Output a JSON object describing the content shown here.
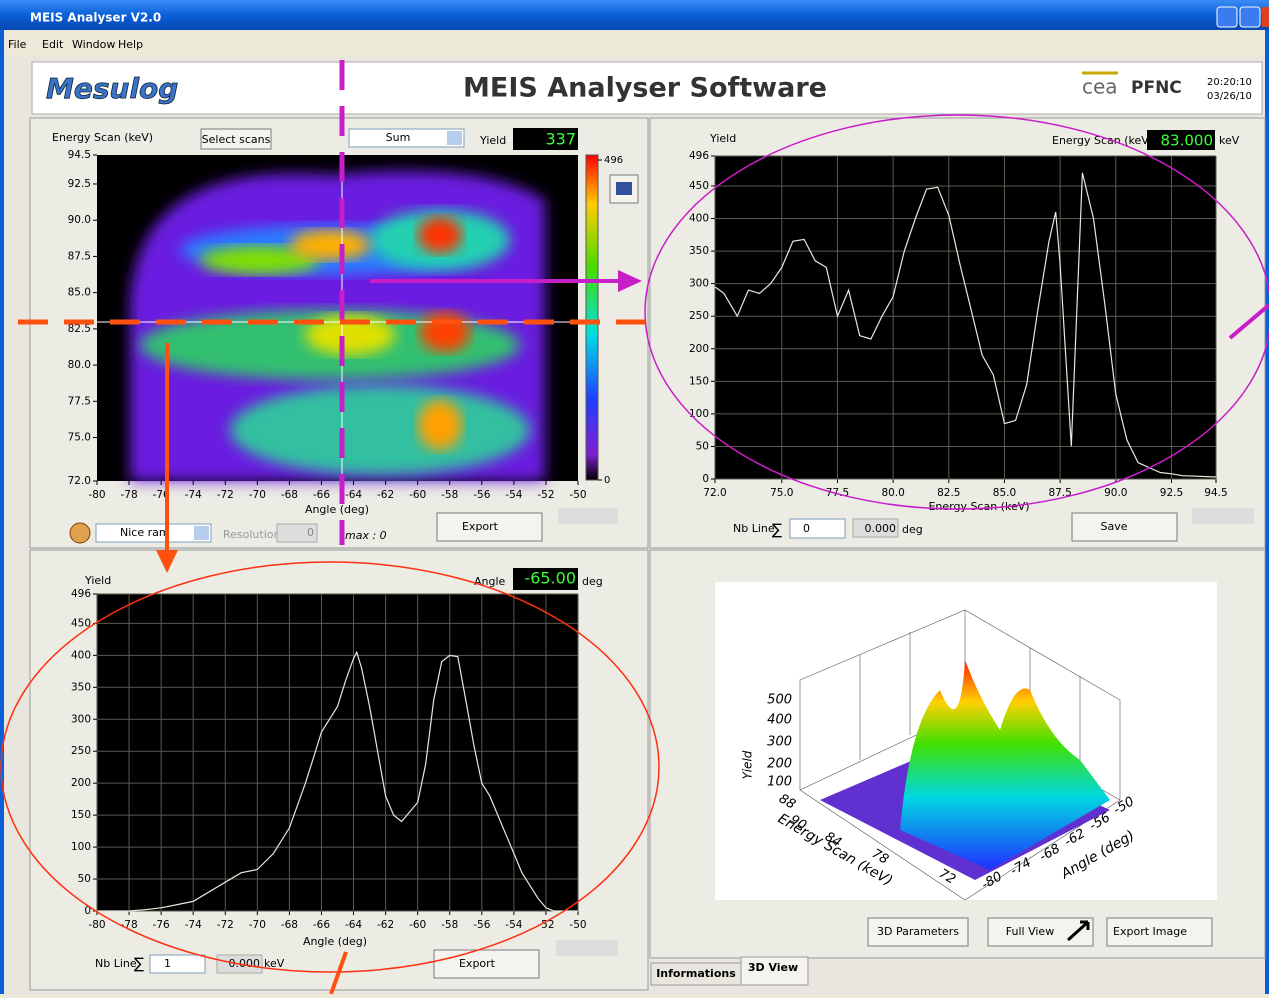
{
  "window": {
    "title": "MEIS Analyser V2.0",
    "menu": [
      "File",
      "Edit",
      "Window",
      "Help"
    ]
  },
  "header": {
    "logo": "Mesulog",
    "title": "MEIS Analyser Software",
    "org1": "cea",
    "org2": "PFNC",
    "time": "20:20:10",
    "date": "03/26/10"
  },
  "heatmap": {
    "y_label": "Energy Scan (keV)",
    "select_button": "Select scans",
    "mode": "Sum",
    "yield_label": "Yield",
    "yield_value": 337,
    "x_label": "Angle (deg)",
    "xlim": [
      -80,
      -50
    ],
    "ylim": [
      72,
      94.5
    ],
    "xticks": [
      -80,
      -78,
      -76,
      -74,
      -72,
      -70,
      -68,
      -66,
      -64,
      -62,
      -60,
      -58,
      -56,
      -54,
      -52,
      -50
    ],
    "yticks": [
      {
        "value": 72,
        "label": "72.0"
      },
      {
        "value": 75,
        "label": "75.0"
      },
      {
        "value": 77.5,
        "label": "77.5"
      },
      {
        "value": 80,
        "label": "80.0"
      },
      {
        "value": 82.5,
        "label": "82.5"
      },
      {
        "value": 85,
        "label": "85.0"
      },
      {
        "value": 87.5,
        "label": "87.5"
      },
      {
        "value": 90,
        "label": "90.0"
      },
      {
        "value": 92.5,
        "label": "92.5"
      },
      {
        "value": 94.5,
        "label": "94.5"
      }
    ],
    "colorbar": {
      "lim": [
        0,
        496
      ],
      "ticks": [
        0,
        496
      ]
    },
    "palette": "Nice ram",
    "resolution_label": "Resolution",
    "resolution": 0,
    "max_label": "max : 0",
    "export": "Export"
  },
  "energy_plot": {
    "y_label": "Yield",
    "cursor_label": "Energy Scan (keV)",
    "cursor_value": "83.000",
    "cursor_unit": "keV",
    "x_label": "Energy Scan (keV)",
    "xlim": [
      72,
      94.5
    ],
    "ylim": [
      0,
      496
    ],
    "xticks": [
      {
        "value": 72,
        "label": "72.0"
      },
      {
        "value": 75,
        "label": "75.0"
      },
      77.5,
      {
        "value": 80,
        "label": "80.0"
      },
      82.5,
      {
        "value": 85,
        "label": "85.0"
      },
      87.5,
      {
        "value": 90,
        "label": "90.0"
      },
      92.5,
      94.5
    ],
    "yticks": [
      0,
      50,
      100,
      150,
      200,
      250,
      300,
      350,
      400,
      450,
      496
    ],
    "x": [
      72,
      72.4,
      73,
      73.5,
      74,
      74.5,
      75,
      75.5,
      76,
      76.5,
      77,
      77.5,
      78,
      78.5,
      79,
      79.5,
      80,
      80.5,
      81,
      81.5,
      82,
      82.5,
      83,
      83.5,
      84,
      84.5,
      85,
      85.5,
      86,
      86.5,
      87,
      87.3,
      87.5,
      88,
      88.5,
      89,
      89.5,
      90,
      90.5,
      91,
      92,
      92.5,
      93,
      94.5
    ],
    "values": [
      295,
      285,
      250,
      290,
      285,
      300,
      325,
      365,
      368,
      335,
      325,
      250,
      290,
      220,
      215,
      250,
      280,
      350,
      400,
      445,
      448,
      405,
      330,
      260,
      190,
      160,
      85,
      90,
      145,
      260,
      365,
      410,
      330,
      50,
      470,
      400,
      270,
      130,
      60,
      25,
      10,
      8,
      5,
      3
    ],
    "nb_line_label": "Nb Line",
    "sigma": "∑",
    "nb_line": "0",
    "offset": "0.000",
    "offset_unit": "deg",
    "save": "Save"
  },
  "angle_plot": {
    "y_label": "Yield",
    "cursor_label": "Angle",
    "cursor_value": "-65.00",
    "cursor_unit": "deg",
    "x_label": "Angle (deg)",
    "xlim": [
      -80,
      -50
    ],
    "ylim": [
      0,
      496
    ],
    "xticks": [
      -80,
      -78,
      -76,
      -74,
      -72,
      -70,
      -68,
      -66,
      -64,
      -62,
      -60,
      -58,
      -56,
      -54,
      -52,
      -50
    ],
    "yticks": [
      0,
      50,
      100,
      150,
      200,
      250,
      300,
      350,
      400,
      450,
      496
    ],
    "x": [
      -80,
      -78,
      -77,
      -76,
      -75,
      -74,
      -73,
      -72,
      -71,
      -70,
      -69,
      -68,
      -67,
      -66.5,
      -66,
      -65.5,
      -65,
      -64.5,
      -64,
      -63.8,
      -63.5,
      -63,
      -62.5,
      -62,
      -61.5,
      -61,
      -60.5,
      -60,
      -59.5,
      -59,
      -58.5,
      -58,
      -57.5,
      -57,
      -56.5,
      -56,
      -55.5,
      -55,
      -54.5,
      -54,
      -53.5,
      -53,
      -52.5,
      -52,
      -51.5,
      -51,
      -50
    ],
    "values": [
      0,
      0,
      2,
      5,
      10,
      15,
      30,
      45,
      60,
      65,
      90,
      130,
      200,
      240,
      280,
      300,
      320,
      360,
      395,
      405,
      380,
      320,
      250,
      180,
      150,
      140,
      155,
      170,
      230,
      330,
      390,
      400,
      398,
      330,
      260,
      200,
      180,
      150,
      120,
      90,
      60,
      40,
      20,
      5,
      0,
      0,
      0
    ],
    "nb_line_label": "Nb Line",
    "sigma": "∑",
    "nb_line": "1",
    "offset": "0.000",
    "offset_unit": "keV",
    "export": "Export"
  },
  "view3d": {
    "yield_label": "Yield",
    "yield_ticks": [
      500,
      400,
      300,
      200,
      100
    ],
    "energy_label": "Energy Scan (keV)",
    "energy_ticks": [
      88,
      90,
      84,
      78,
      72
    ],
    "angle_label": "Angle (deg)",
    "angle_ticks": [
      -50,
      -56,
      -62,
      -68,
      -74,
      -80
    ],
    "buttons": [
      "3D Parameters",
      "Full View",
      "Export Image"
    ],
    "tabs": [
      "Informations",
      "3D View"
    ]
  }
}
